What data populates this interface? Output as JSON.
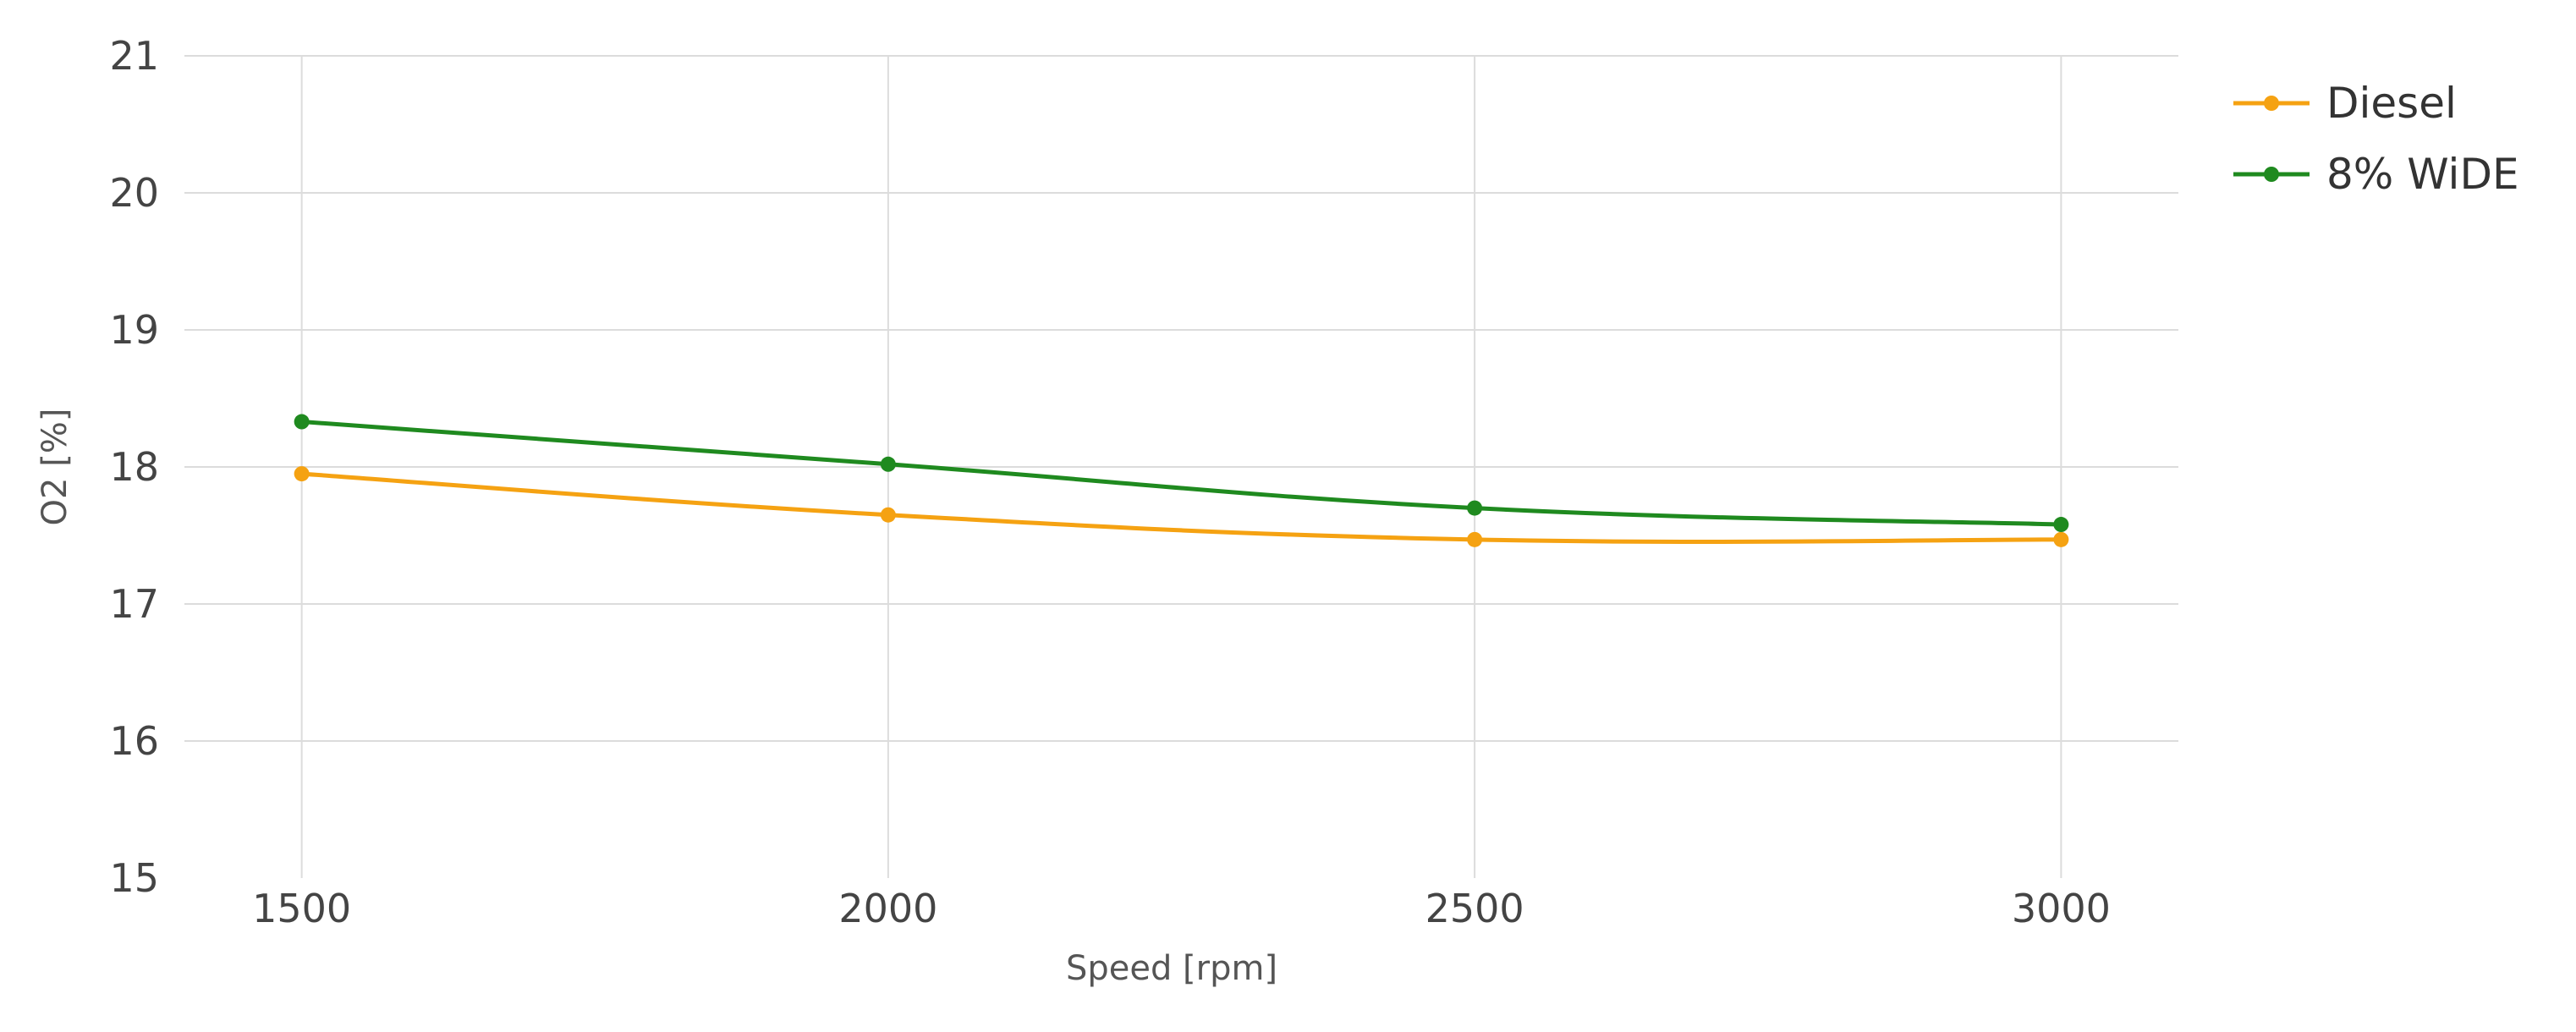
{
  "chart_data": {
    "type": "line",
    "title": "",
    "xlabel": "Speed [rpm]",
    "ylabel": "O2 [%]",
    "x": [
      1500,
      2000,
      2500,
      3000
    ],
    "x_ticks": [
      "1500",
      "2000",
      "2500",
      "3000"
    ],
    "y_ticks": [
      "15",
      "16",
      "17",
      "18",
      "19",
      "20",
      "21"
    ],
    "xlim": [
      1400,
      3100
    ],
    "ylim": [
      15,
      21
    ],
    "grid": true,
    "legend_position": "top-right",
    "series": [
      {
        "name": "Diesel",
        "color": "#f5a212",
        "values": [
          17.95,
          17.65,
          17.47,
          17.47
        ]
      },
      {
        "name": "8% WiDE",
        "color": "#1f8a1f",
        "values": [
          18.33,
          18.02,
          17.7,
          17.58
        ]
      }
    ]
  }
}
